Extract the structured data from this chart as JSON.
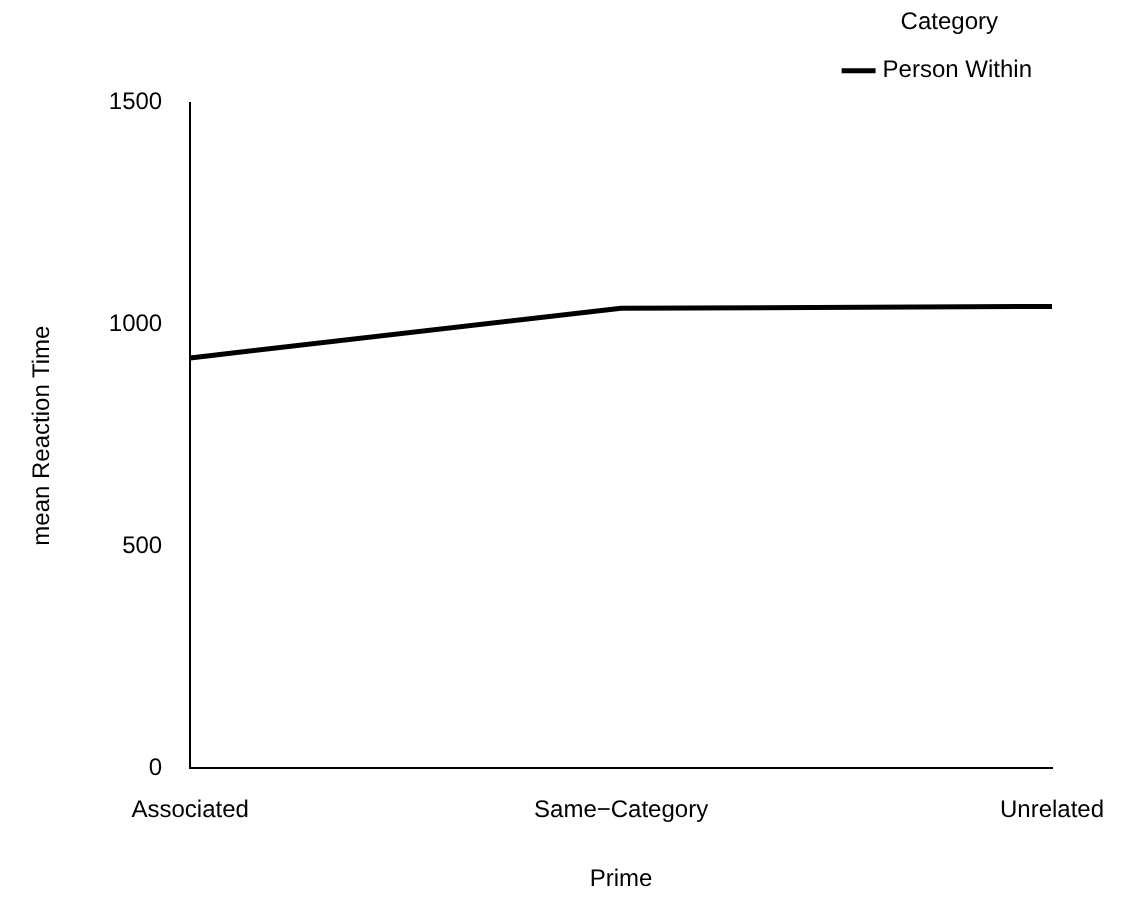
{
  "chart_data": {
    "type": "line",
    "xlabel": "Prime",
    "ylabel": "mean Reaction Time",
    "legend_title": "Category",
    "categories": [
      "Associated",
      "Same−Category",
      "Unrelated"
    ],
    "series": [
      {
        "name": "Person Within",
        "color": "#000000",
        "values": [
          925,
          1037,
          1041
        ]
      }
    ],
    "ylim": [
      0,
      1500
    ],
    "yticks": [
      0,
      500,
      1000,
      1500
    ],
    "grid": false,
    "legend": "top right",
    "marker": "none",
    "line_style": "solid"
  }
}
